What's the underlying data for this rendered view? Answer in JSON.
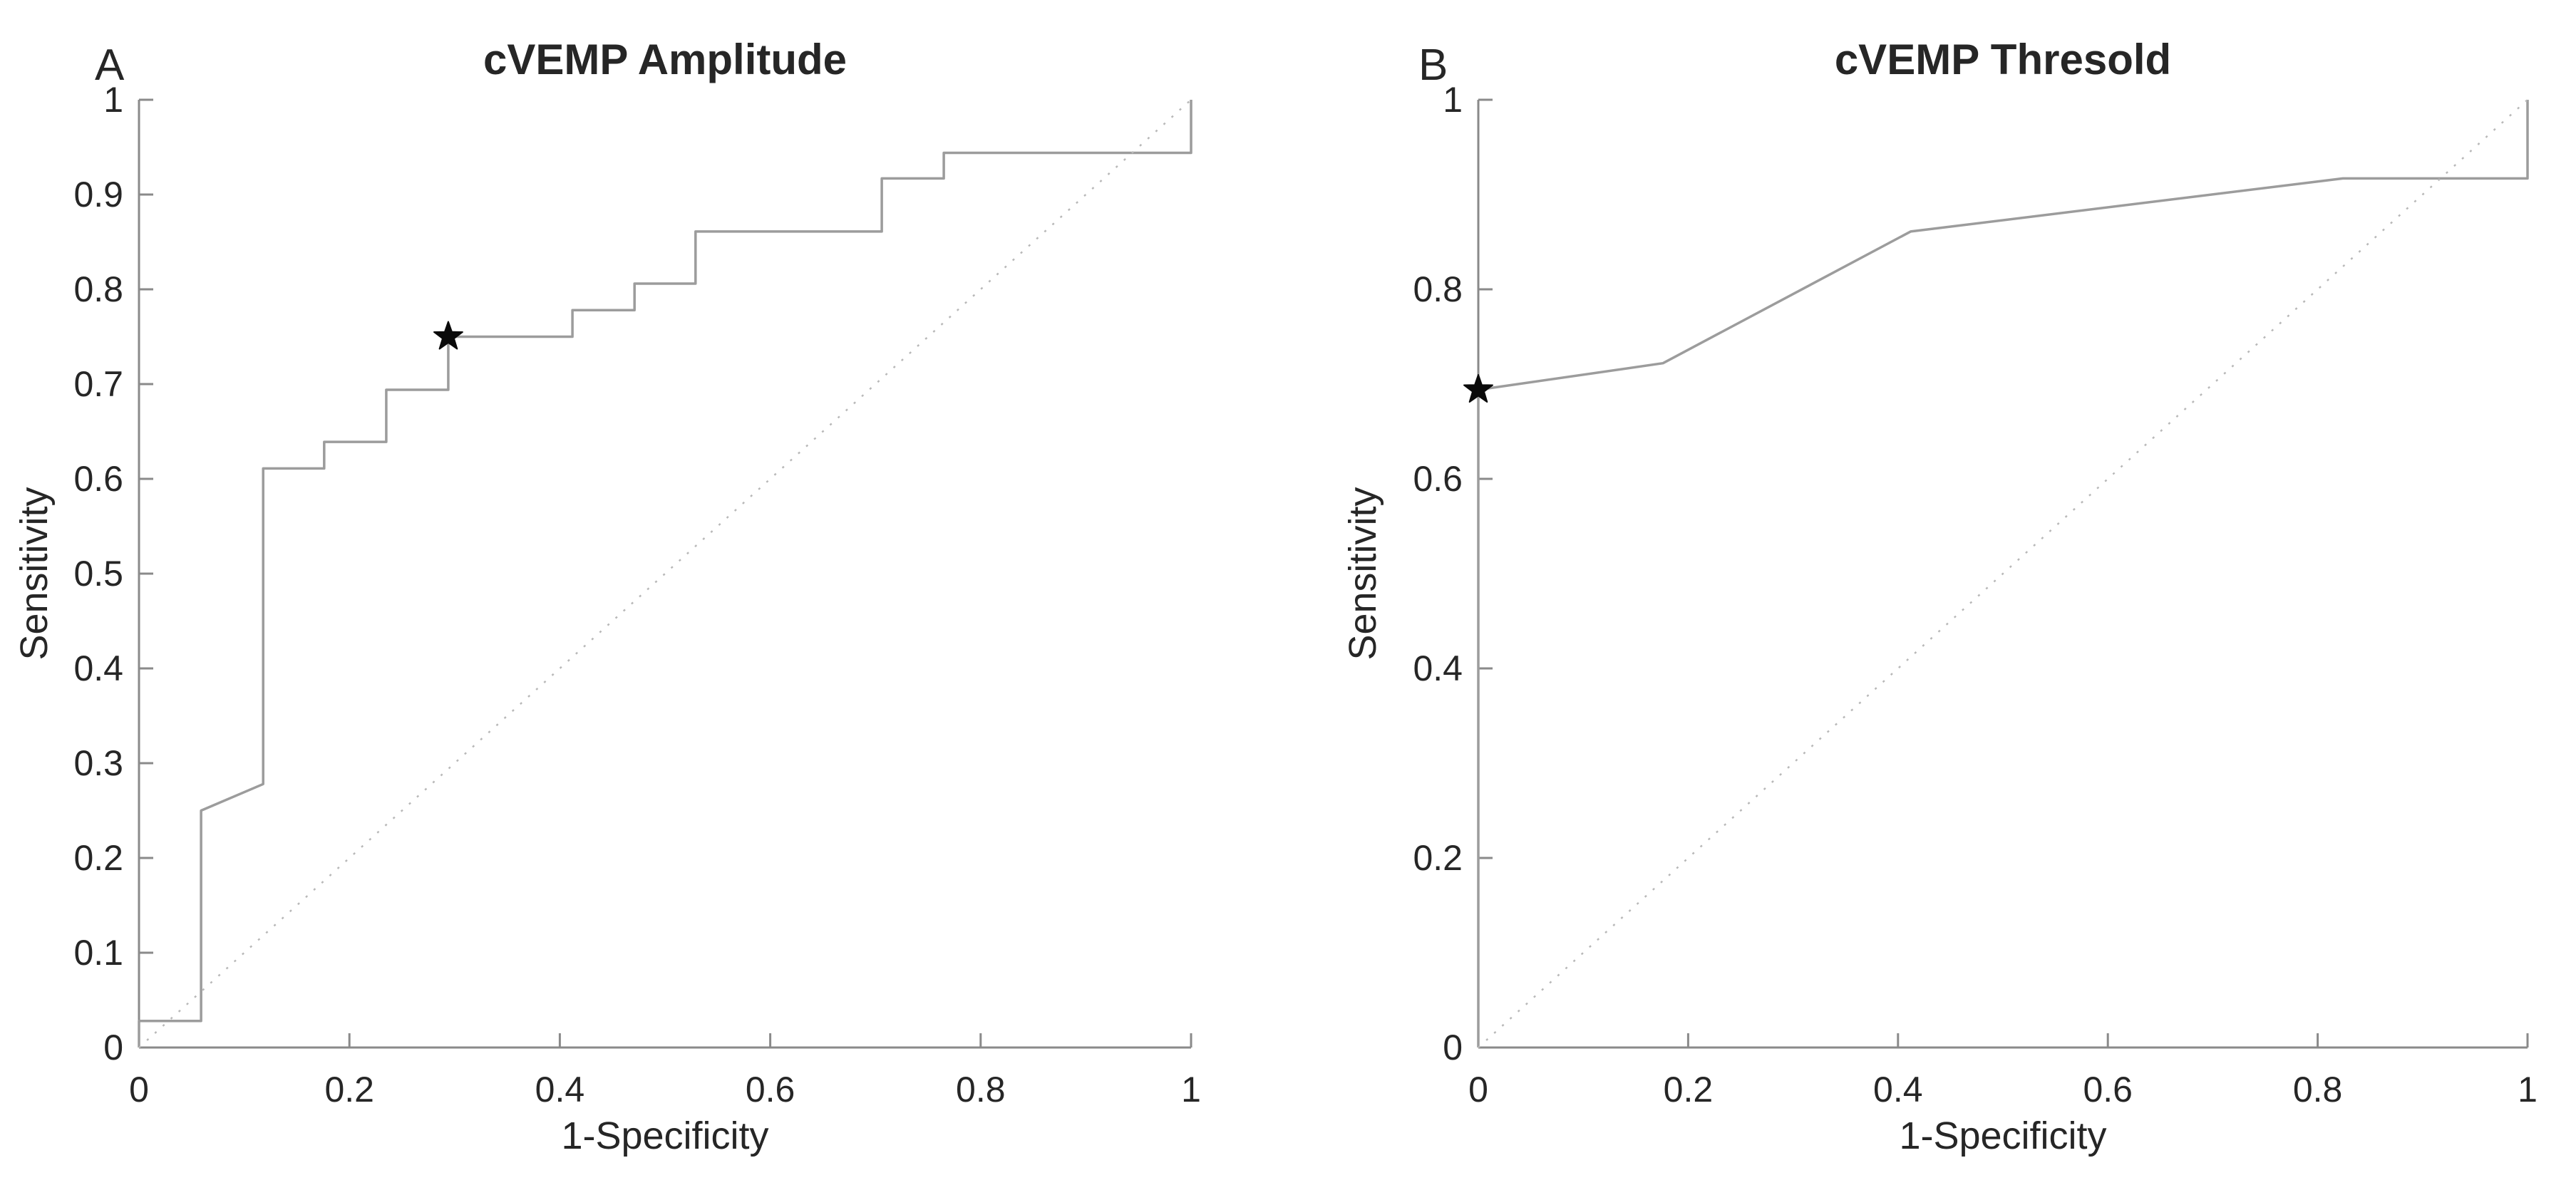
{
  "figure": {
    "background": "#ffffff",
    "text_color": "#262626",
    "axis_color": "#8a8a8a",
    "curve_color": "#9c9c9c",
    "diagonal_color": "#b8b8b8",
    "star_color": "#0a0a0a"
  },
  "chart_data": [
    {
      "type": "line",
      "panel_label": "A",
      "title": "cVEMP Amplitude",
      "xlabel": "1-Specificity",
      "ylabel": "Sensitivity",
      "xlim": [
        0,
        1
      ],
      "ylim": [
        0,
        1
      ],
      "grid": false,
      "legend": null,
      "xtick_values": [
        0,
        0.2,
        0.4,
        0.6,
        0.8,
        1
      ],
      "xtick_labels": [
        "0",
        "0.2",
        "0.4",
        "0.6",
        "0.8",
        "1"
      ],
      "ytick_values": [
        0,
        0.1,
        0.2,
        0.3,
        0.4,
        0.5,
        0.6,
        0.7,
        0.8,
        0.9,
        1
      ],
      "ytick_labels": [
        "0",
        "0.1",
        "0.2",
        "0.3",
        "0.4",
        "0.5",
        "0.6",
        "0.7",
        "0.8",
        "0.9",
        "1"
      ],
      "series": [
        {
          "name": "ROC curve",
          "style": "solid",
          "points": [
            [
              0,
              0
            ],
            [
              0,
              0.028
            ],
            [
              0.059,
              0.028
            ],
            [
              0.059,
              0.25
            ],
            [
              0.118,
              0.278
            ],
            [
              0.118,
              0.611
            ],
            [
              0.176,
              0.611
            ],
            [
              0.176,
              0.639
            ],
            [
              0.235,
              0.639
            ],
            [
              0.235,
              0.694
            ],
            [
              0.294,
              0.694
            ],
            [
              0.294,
              0.75
            ],
            [
              0.412,
              0.75
            ],
            [
              0.412,
              0.778
            ],
            [
              0.471,
              0.778
            ],
            [
              0.471,
              0.806
            ],
            [
              0.529,
              0.806
            ],
            [
              0.529,
              0.861
            ],
            [
              0.706,
              0.861
            ],
            [
              0.706,
              0.917
            ],
            [
              0.765,
              0.917
            ],
            [
              0.765,
              0.944
            ],
            [
              1,
              0.944
            ],
            [
              1,
              1
            ]
          ]
        },
        {
          "name": "chance diagonal",
          "style": "dotted",
          "points": [
            [
              0,
              0
            ],
            [
              1,
              1
            ]
          ]
        }
      ],
      "operating_point": {
        "x": 0.294,
        "y": 0.75,
        "marker": "pentagram"
      }
    },
    {
      "type": "line",
      "panel_label": "B",
      "title": "cVEMP Thresold",
      "xlabel": "1-Specificity",
      "ylabel": "Sensitivity",
      "xlim": [
        0,
        1
      ],
      "ylim": [
        0,
        1
      ],
      "grid": false,
      "legend": null,
      "xtick_values": [
        0,
        0.2,
        0.4,
        0.6,
        0.8,
        1
      ],
      "xtick_labels": [
        "0",
        "0.2",
        "0.4",
        "0.6",
        "0.8",
        "1"
      ],
      "ytick_values": [
        0,
        0.2,
        0.4,
        0.6,
        0.8,
        1
      ],
      "ytick_labels": [
        "0",
        "0.2",
        "0.4",
        "0.6",
        "0.8",
        "1"
      ],
      "series": [
        {
          "name": "ROC curve",
          "style": "solid",
          "points": [
            [
              0,
              0
            ],
            [
              0,
              0.694
            ],
            [
              0.176,
              0.722
            ],
            [
              0.412,
              0.861
            ],
            [
              0.824,
              0.917
            ],
            [
              1,
              0.917
            ],
            [
              1,
              1
            ]
          ]
        },
        {
          "name": "chance diagonal",
          "style": "dotted",
          "points": [
            [
              0,
              0
            ],
            [
              1,
              1
            ]
          ]
        }
      ],
      "operating_point": {
        "x": 0,
        "y": 0.694,
        "marker": "pentagram"
      }
    }
  ]
}
